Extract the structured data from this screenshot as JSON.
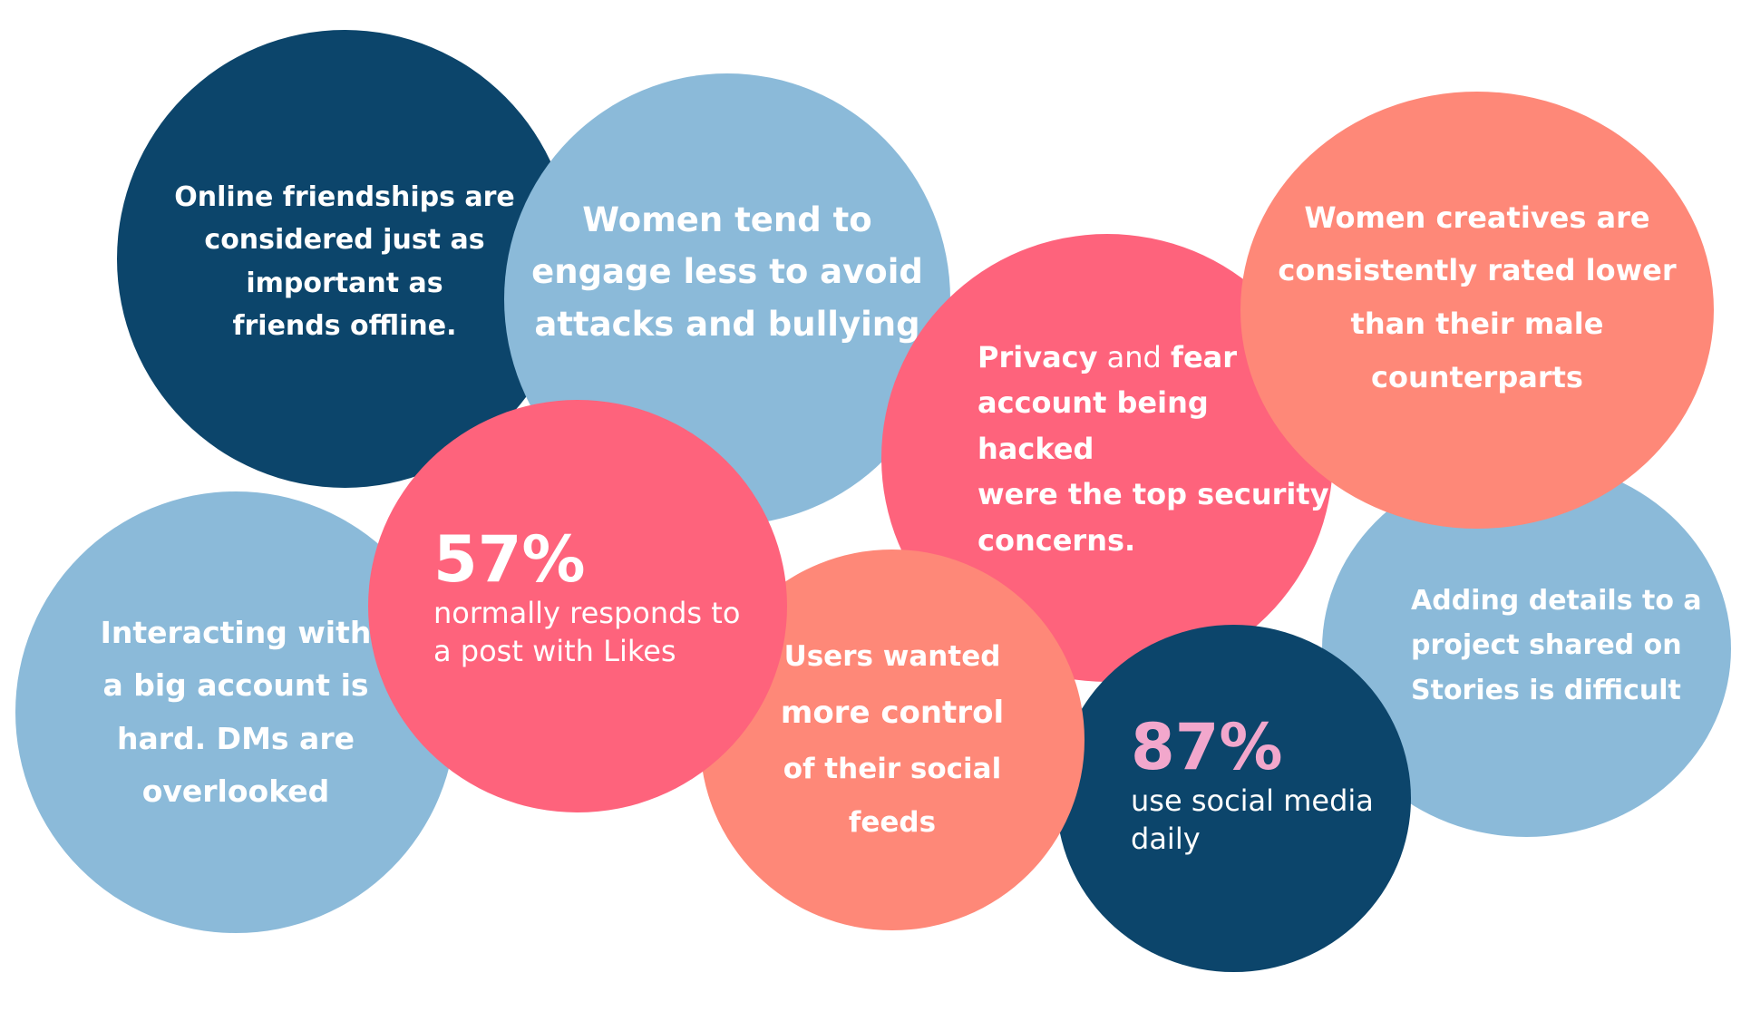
{
  "colors": {
    "navy": "#0c456b",
    "light_blue": "#8bbad9",
    "coral": "#fe8878",
    "pink": "#fe637c",
    "stat_pink": "#f2a7cc"
  },
  "bubbles": {
    "online_friendships": {
      "line1": "Online friendships are",
      "line2": "considered just as",
      "line3": "important as",
      "line4": "friends offline."
    },
    "women_engage": {
      "line1": "Women tend to",
      "line2": "engage less to avoid",
      "line3": "attacks and bullying"
    },
    "interacting": {
      "line1": "Interacting with",
      "line2": "a big account is",
      "line3": "hard. DMs are",
      "line4": "overlooked"
    },
    "adding_details": {
      "line1": "Adding details to a",
      "line2": "project shared on",
      "line3": "Stories is difficult"
    },
    "women_creatives": {
      "line1": "Women creatives are",
      "line2": "consistently rated lower",
      "line3": "than their male",
      "line4": "counterparts"
    },
    "privacy": {
      "privacy": "Privacy",
      "and": " and ",
      "fear_of": "fear of",
      "line2": "account being hacked",
      "line3": "were the top security",
      "line4": "concerns."
    },
    "stat_87": {
      "value": "87%",
      "line1": "use social media",
      "line2": "daily"
    },
    "users_wanted": {
      "line1": "Users wanted",
      "line2": "more control",
      "line3": "of their social",
      "line4": "feeds"
    },
    "stat_57": {
      "value": "57%",
      "line1": "normally responds to",
      "line2": "a post with Likes"
    }
  }
}
